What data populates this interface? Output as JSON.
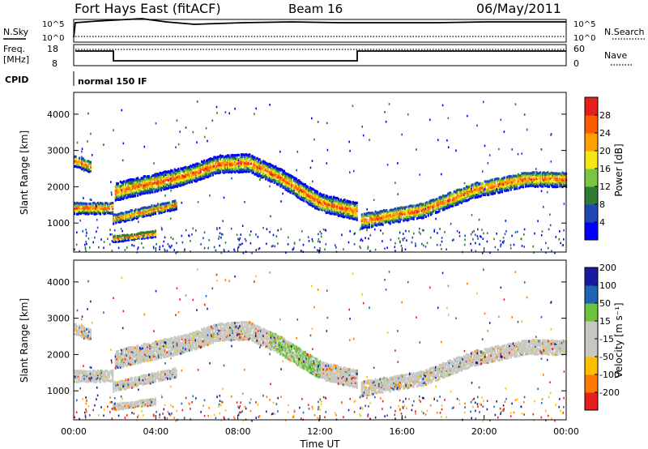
{
  "header": {
    "title": "Fort Hays East (fitACF)",
    "beam": "Beam 16",
    "date": "06/May/2011"
  },
  "noise_panel": {
    "left_label": "N.Sky",
    "right_label": "N.Search",
    "left_ticks": [
      "10^5",
      "10^0"
    ],
    "right_ticks": [
      "10^5",
      "10^0"
    ]
  },
  "freq_panel": {
    "left_label_1": "Freq.",
    "left_label_2": "[MHz]",
    "right_label": "Nave",
    "left_ticks": [
      "18",
      "8"
    ],
    "right_ticks": [
      "60",
      "0"
    ]
  },
  "cpid": {
    "label": "CPID",
    "mode": "normal 150 IF"
  },
  "colors": {
    "scatter_gray": "#c8c8c0",
    "power_scale": [
      "#0000ff",
      "#1e46b4",
      "#2e7d32",
      "#7cc540",
      "#f5e614",
      "#ffa000",
      "#ff5a00",
      "#e61e1e"
    ],
    "velocity_scale": [
      "#e61e1e",
      "#ff7800",
      "#ffbe00",
      "#c8c8c0",
      "#c8c8c0",
      "#6cc23a",
      "#1e64b4",
      "#1a1aa0"
    ]
  },
  "chart_data": [
    {
      "type": "heatmap",
      "name": "power",
      "ylabel": "Slant Range [km]",
      "ylim": [
        200,
        4600
      ],
      "yticks": [
        "1000",
        "2000",
        "3000",
        "4000"
      ],
      "xlim": [
        0,
        24
      ],
      "colorbar": {
        "label": "Power [dB]",
        "ticks": [
          "4",
          "8",
          "12",
          "16",
          "20",
          "24",
          "28"
        ],
        "range": [
          0,
          32
        ]
      },
      "scatter_bands": [
        {
          "x": [
            0,
            1.9
          ],
          "y": [
            1450,
            1450
          ],
          "halfwidth": 150
        },
        {
          "x": [
            0,
            0.8
          ],
          "y": [
            2750,
            2600
          ],
          "halfwidth": 150
        },
        {
          "x": [
            2.0,
            5.5,
            7.0,
            8.5,
            10.0,
            12.0,
            13.8
          ],
          "y": [
            1900,
            2350,
            2650,
            2700,
            2300,
            1600,
            1350
          ],
          "halfwidth": 230
        },
        {
          "x": [
            1.9,
            5.0
          ],
          "y": [
            1150,
            1550
          ],
          "halfwidth": 120
        },
        {
          "x": [
            1.9,
            4.0
          ],
          "y": [
            600,
            750
          ],
          "halfwidth": 80
        },
        {
          "x": [
            14.0,
            17.0,
            19.5,
            22.0,
            24.0
          ],
          "y": [
            1100,
            1400,
            1950,
            2250,
            2250
          ],
          "halfwidth": 200
        }
      ]
    },
    {
      "type": "heatmap",
      "name": "velocity",
      "ylabel": "Slant Range [km]",
      "xlabel": "Time UT",
      "ylim": [
        200,
        4600
      ],
      "yticks": [
        "1000",
        "2000",
        "3000",
        "4000"
      ],
      "xlim": [
        0,
        24
      ],
      "xticks": [
        "00:00",
        "04:00",
        "08:00",
        "12:00",
        "16:00",
        "20:00",
        "00:00"
      ],
      "colorbar": {
        "label": "Velocity [m s⁻¹]",
        "ticks": [
          "-200",
          "-100",
          "-50",
          "-15",
          "15",
          "50",
          "100",
          "200"
        ]
      }
    }
  ]
}
